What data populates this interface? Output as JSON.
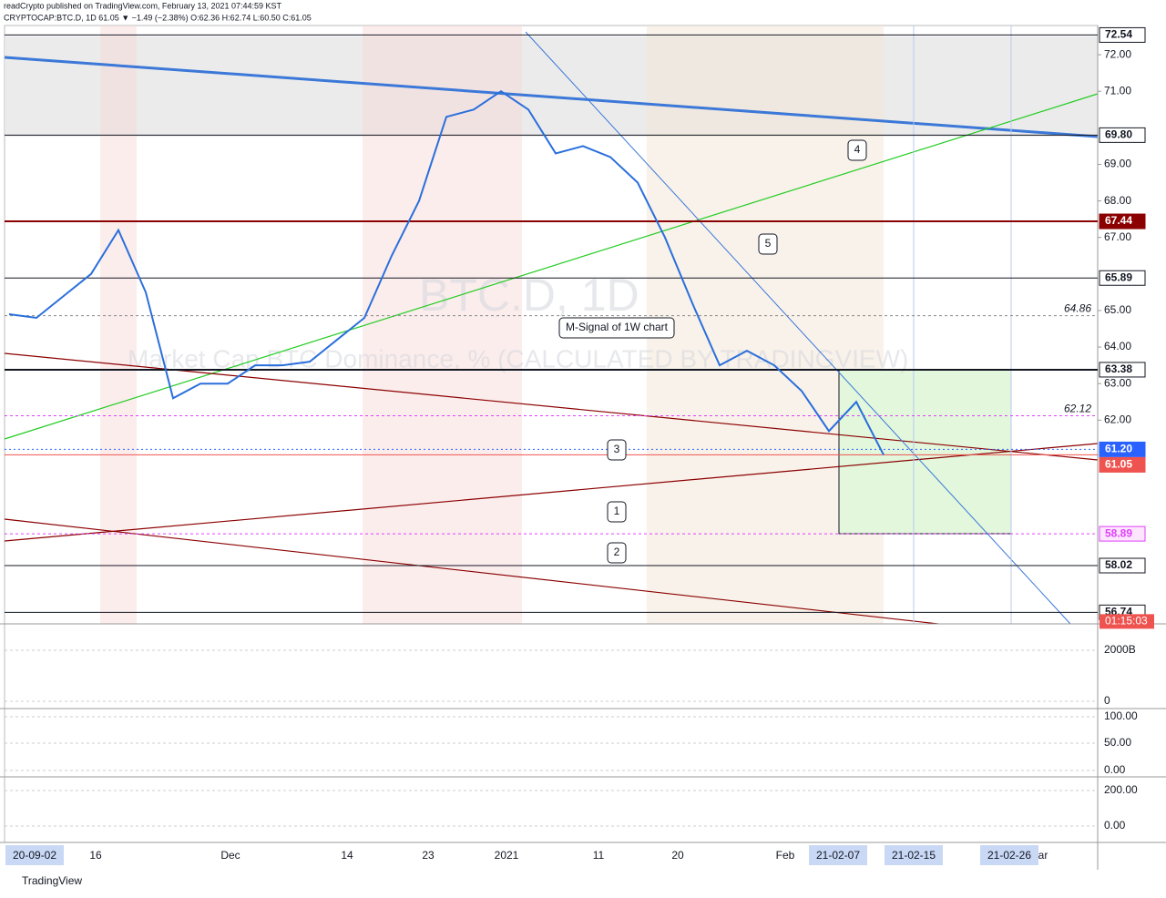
{
  "header": {
    "publisher": "readCrypto published on TradingView.com, February 13, 2021 07:44:59 KST",
    "symbol": "CRYPTOCAP:BTC.D, 1D 61.05 ▼ −1.49 (−2.38%) O:62.36 H:62.74 L:60.50 C:61.05"
  },
  "chart_data": {
    "type": "line",
    "title": "BTC.D, 1D",
    "subtitle": "Market Cap BTC Dominance, % (CALCULATED BY TRADINGVIEW)",
    "values": [
      64.9,
      64.8,
      65.4,
      66.0,
      67.2,
      65.5,
      62.6,
      63.0,
      63.0,
      63.5,
      63.5,
      63.6,
      64.2,
      64.8,
      66.5,
      68.0,
      70.3,
      70.5,
      71.0,
      70.5,
      69.3,
      69.5,
      69.2,
      68.5,
      67.0,
      65.2,
      63.5,
      63.9,
      63.5,
      62.8,
      61.7,
      62.5,
      61.05
    ],
    "color": "#2a6fdb",
    "ylim": [
      56.425,
      72.8
    ],
    "yticks": [
      {
        "value": 72,
        "label": "72.00"
      },
      {
        "value": 71,
        "label": "71.00"
      },
      {
        "value": 69,
        "label": "69.00"
      },
      {
        "value": 68,
        "label": "68.00"
      },
      {
        "value": 67,
        "label": "67.00"
      },
      {
        "value": 65,
        "label": "65.00"
      },
      {
        "value": 64,
        "label": "64.00"
      },
      {
        "value": 63,
        "label": "63.00"
      },
      {
        "value": 62,
        "label": "62.00"
      }
    ],
    "levels": [
      {
        "value": 72.54,
        "label": "72.54",
        "color": "#131722",
        "style": "box"
      },
      {
        "value": 69.8,
        "label": "69.80",
        "color": "#131722",
        "style": "box"
      },
      {
        "value": 67.44,
        "label": "67.44",
        "color": "#8b0000",
        "style": "filled"
      },
      {
        "value": 65.89,
        "label": "65.89",
        "color": "#131722",
        "style": "box"
      },
      {
        "value": 64.86,
        "label": "64.86",
        "color": "#888888",
        "style": "inside"
      },
      {
        "value": 63.38,
        "label": "63.38",
        "color": "#131722",
        "style": "box"
      },
      {
        "value": 62.12,
        "label": "62.12",
        "color": "#e040fb",
        "style": "inside"
      },
      {
        "value": 61.2,
        "label": "61.20",
        "color": "#2962ff",
        "style": "filled"
      },
      {
        "value": 61.05,
        "label": "61.05",
        "color": "#ef5350",
        "style": "filled"
      },
      {
        "value": 58.89,
        "label": "58.89",
        "color": "#e040fb",
        "style": "pink"
      },
      {
        "value": 58.02,
        "label": "58.02",
        "color": "#131722",
        "style": "box"
      },
      {
        "value": 56.74,
        "label": "56.74",
        "color": "#131722",
        "style": "box"
      }
    ],
    "countdown": "01:15:03",
    "x_labels": [
      "20-09-02",
      "16",
      "Dec",
      "14",
      "23",
      "2021",
      "11",
      "20",
      "Feb",
      "21-02-07",
      "21-02-15",
      "21-02-26",
      "ar"
    ],
    "annotations": [
      "1",
      "2",
      "3",
      "4",
      "5",
      "M-Signal of 1W chart"
    ],
    "panels": [
      {
        "ticks": [
          "2000B",
          "0"
        ]
      },
      {
        "ticks": [
          "100.00",
          "50.00",
          "0.00"
        ]
      },
      {
        "ticks": [
          "200.00",
          "0.00"
        ]
      }
    ]
  },
  "footer": "TradingView"
}
